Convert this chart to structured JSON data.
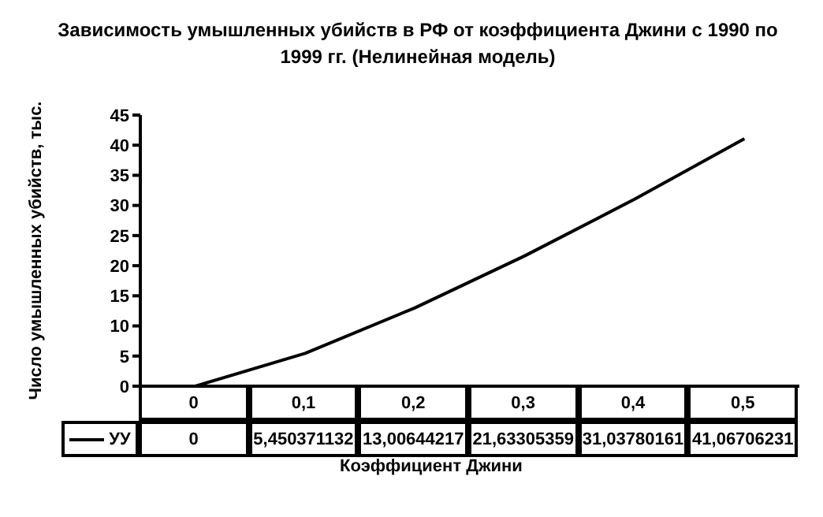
{
  "chart_data": {
    "type": "line",
    "title": "Зависимость умышленных убийств в РФ от коэффициента Джини  с 1990 по 1999 гг. (Нелинейная модель)",
    "xlabel": "Коэффициент Джини",
    "ylabel": "Число умышленных убийств, тыс.",
    "categories": [
      "0",
      "0,1",
      "0,2",
      "0,3",
      "0,4",
      "0,5"
    ],
    "series": [
      {
        "name": "УУ",
        "color": "#000000",
        "values": [
          0,
          5.450371132,
          13.00644217,
          21.63305359,
          31.03780161,
          41.06706231
        ],
        "value_labels": [
          "0",
          "5,450371132",
          "13,00644217",
          "21,63305359",
          "31,03780161",
          "41,06706231"
        ]
      }
    ],
    "ylim": [
      0,
      45
    ],
    "yticks": [
      0,
      5,
      10,
      15,
      20,
      25,
      30,
      35,
      40,
      45
    ],
    "grid": false,
    "legend": "bottom left",
    "marker": "none",
    "line_style": "solid",
    "data_labels": true
  }
}
